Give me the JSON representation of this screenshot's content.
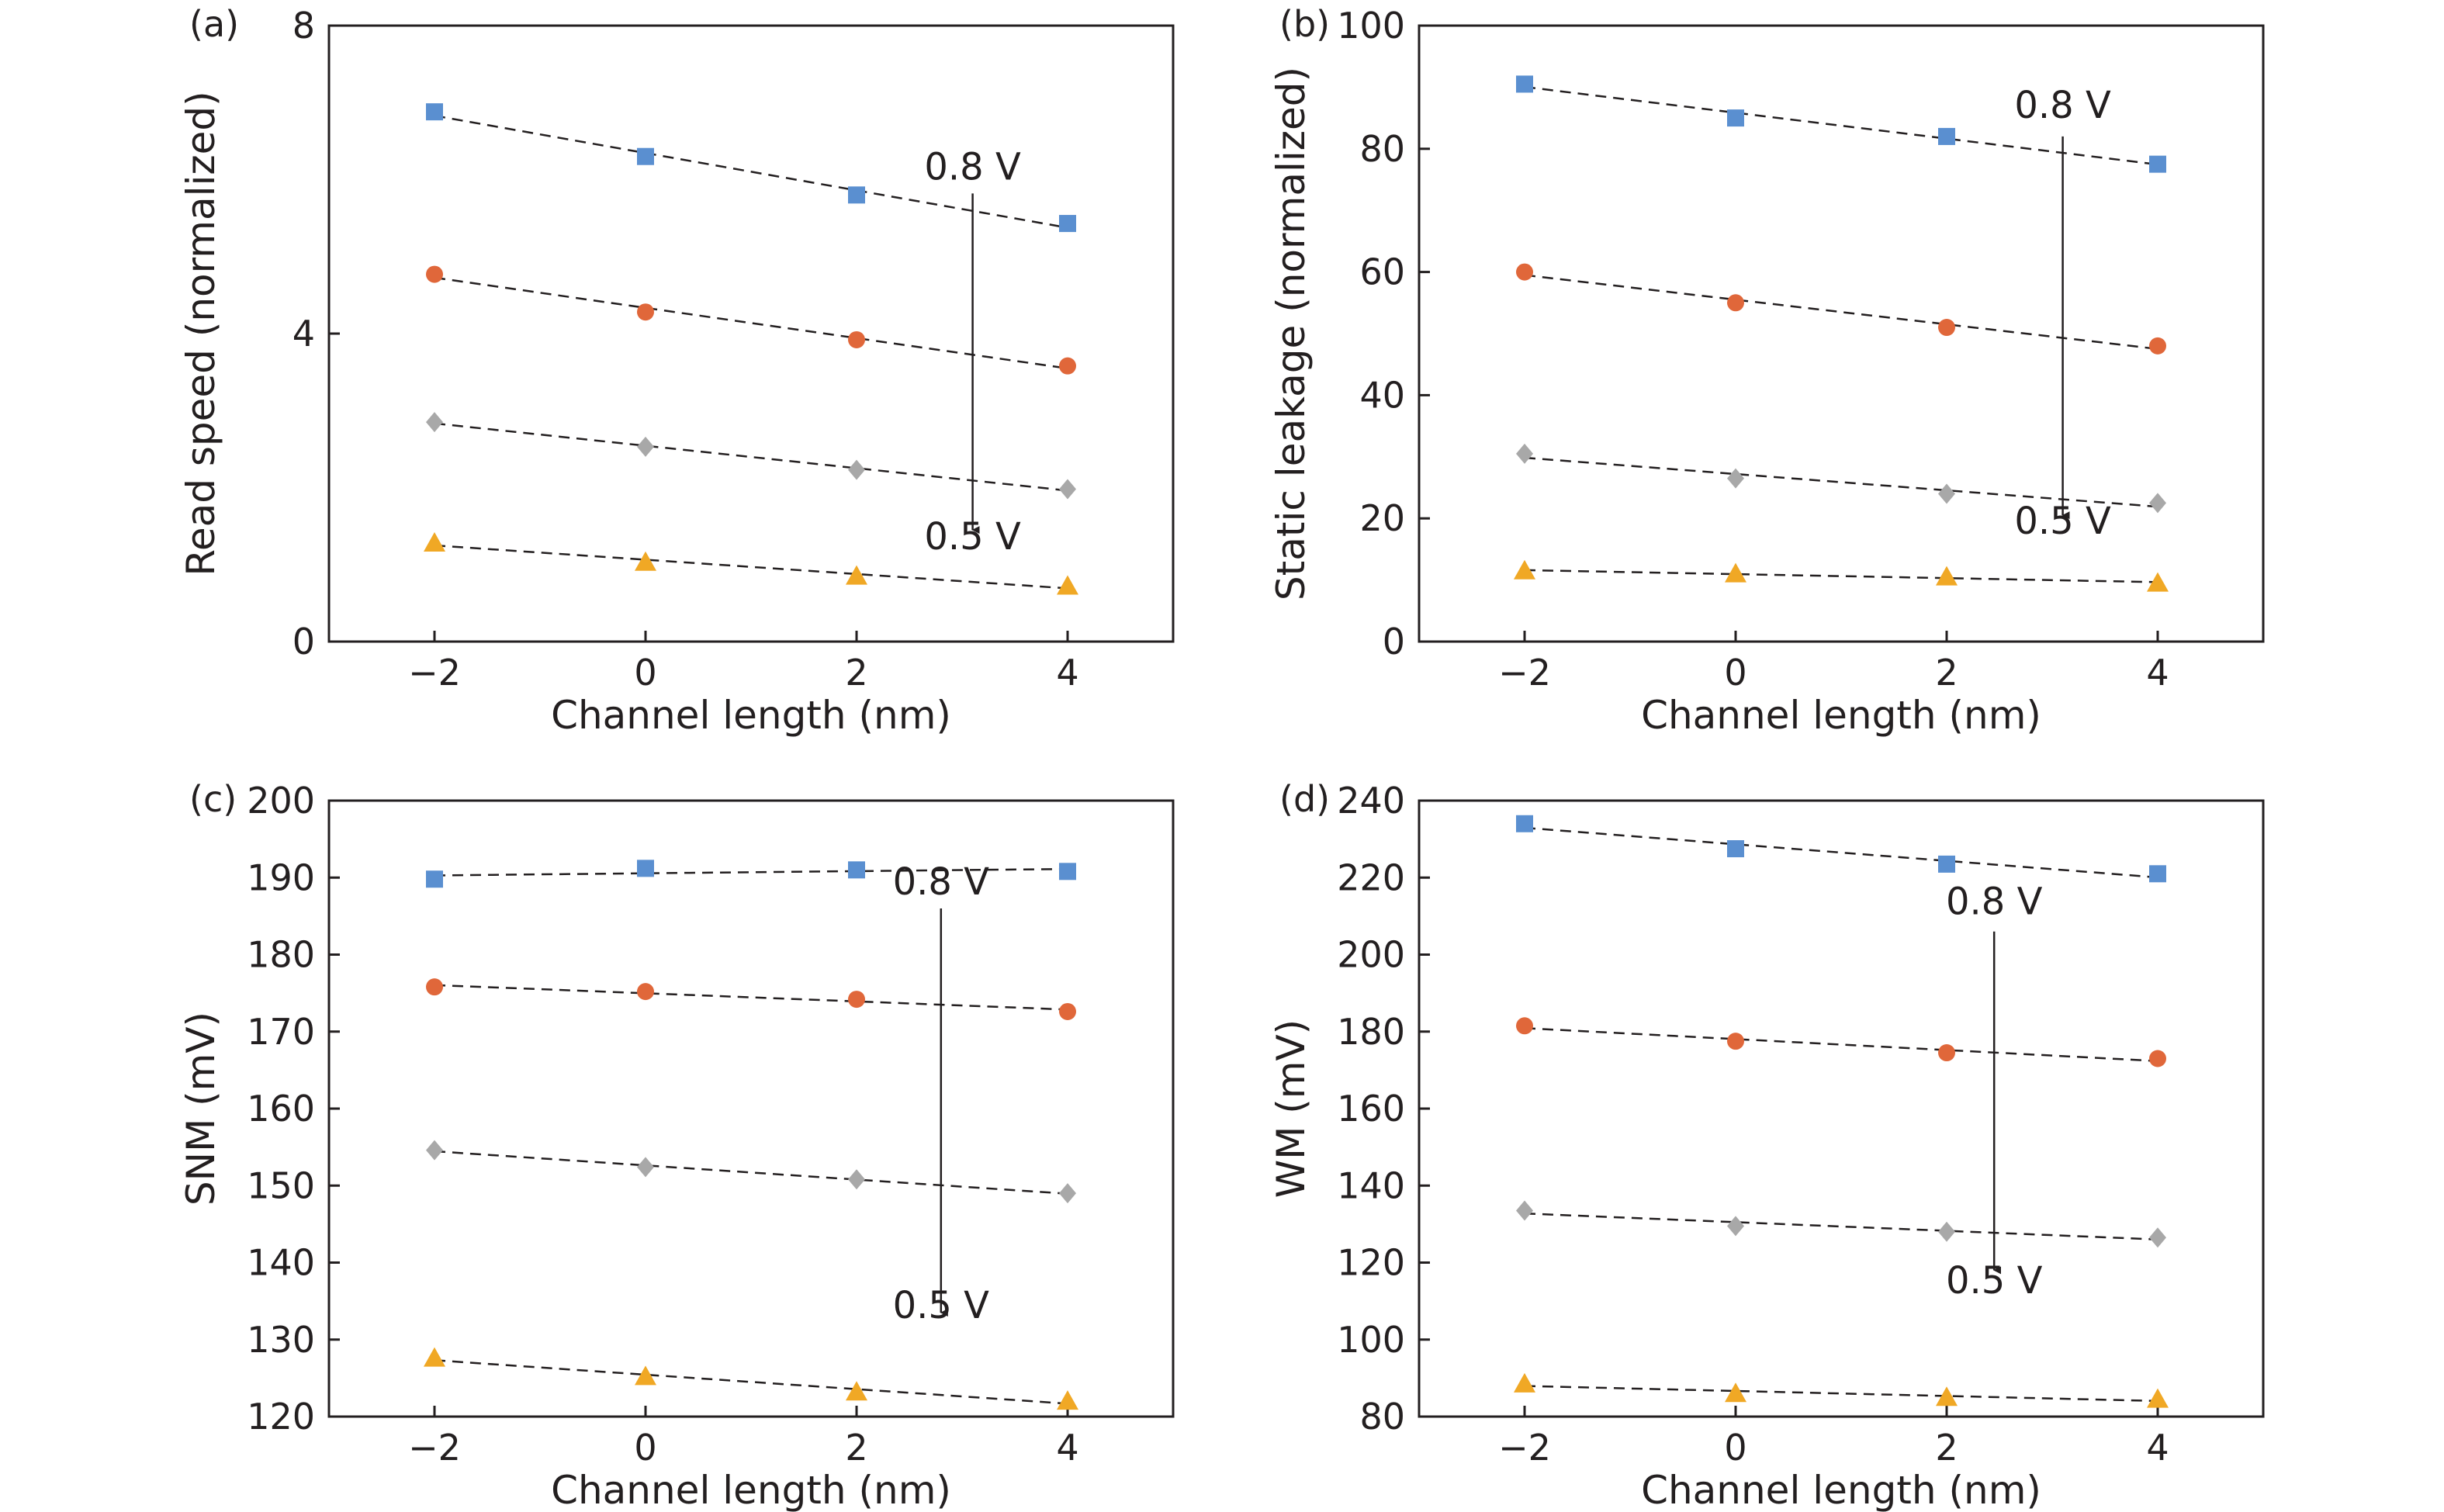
{
  "colors": {
    "square": "#5a8fd0",
    "circle": "#e0673a",
    "diamond": "#a8a8a8",
    "triangle": "#f0a825",
    "fit_line": "#231f20",
    "axes": "#231f20"
  },
  "chart_data": [
    {
      "type": "scatter",
      "panel_label": "(a)",
      "xlabel": "Channel length (nm)",
      "ylabel": "Read speed (normalized)",
      "x": [
        -2,
        0,
        2,
        4
      ],
      "xticks": [
        -2,
        0,
        2,
        4
      ],
      "xtick_labels": [
        "−2",
        "0",
        "2",
        "4"
      ],
      "xlim": [
        -3,
        5
      ],
      "yticks": [
        0,
        4,
        8
      ],
      "ytick_labels": [
        "0",
        "4",
        "8"
      ],
      "ylim": [
        0,
        8
      ],
      "series": [
        {
          "marker": "square",
          "values": [
            6.88,
            6.3,
            5.8,
            5.43
          ]
        },
        {
          "marker": "circle",
          "values": [
            4.77,
            4.28,
            3.92,
            3.58
          ]
        },
        {
          "marker": "diamond",
          "values": [
            2.85,
            2.53,
            2.23,
            1.98
          ]
        },
        {
          "marker": "triangle",
          "values": [
            1.28,
            1.03,
            0.85,
            0.72
          ]
        }
      ],
      "arrow": {
        "x": 3.1,
        "y_start": 5.82,
        "y_end": 1.45,
        "top_label": "0.8 V",
        "bottom_label": "0.5 V",
        "top_label_y": 6.0,
        "bottom_label_y": 1.2
      }
    },
    {
      "type": "scatter",
      "panel_label": "(b)",
      "xlabel": "Channel length (nm)",
      "ylabel": "Static leakage (normalized)",
      "x": [
        -2,
        0,
        2,
        4
      ],
      "xticks": [
        -2,
        0,
        2,
        4
      ],
      "xtick_labels": [
        "−2",
        "0",
        "2",
        "4"
      ],
      "xlim": [
        -3,
        5
      ],
      "yticks": [
        0,
        20,
        40,
        60,
        80,
        100
      ],
      "ytick_labels": [
        "0",
        "20",
        "40",
        "60",
        "80",
        "100"
      ],
      "ylim": [
        0,
        100
      ],
      "series": [
        {
          "marker": "square",
          "values": [
            90.5,
            85.0,
            82.0,
            77.5
          ]
        },
        {
          "marker": "circle",
          "values": [
            60.0,
            55.0,
            51.0,
            48.0
          ]
        },
        {
          "marker": "diamond",
          "values": [
            30.5,
            26.5,
            24.0,
            22.5
          ]
        },
        {
          "marker": "triangle",
          "values": [
            11.5,
            11.0,
            10.5,
            9.5
          ]
        }
      ],
      "arrow": {
        "x": 3.1,
        "y_start": 82.0,
        "y_end": 20.5,
        "top_label": "0.8 V",
        "bottom_label": "0.5 V",
        "top_label_y": 85.0,
        "bottom_label_y": 17.5
      }
    },
    {
      "type": "scatter",
      "panel_label": "(c)",
      "xlabel": "Channel length (nm)",
      "ylabel": "SNM (mV)",
      "x": [
        -2,
        0,
        2,
        4
      ],
      "xticks": [
        -2,
        0,
        2,
        4
      ],
      "xtick_labels": [
        "−2",
        "0",
        "2",
        "4"
      ],
      "xlim": [
        -3,
        5
      ],
      "yticks": [
        120,
        130,
        140,
        150,
        160,
        170,
        180,
        190,
        200
      ],
      "ytick_labels": [
        "120",
        "130",
        "140",
        "150",
        "160",
        "170",
        "180",
        "190",
        "200"
      ],
      "ylim": [
        120,
        200
      ],
      "series": [
        {
          "marker": "square",
          "values": [
            189.8,
            191.2,
            191.0,
            190.8
          ]
        },
        {
          "marker": "circle",
          "values": [
            175.8,
            175.2,
            174.2,
            172.6
          ]
        },
        {
          "marker": "diamond",
          "values": [
            154.6,
            152.4,
            150.8,
            149.0
          ]
        },
        {
          "marker": "triangle",
          "values": [
            127.6,
            125.2,
            123.2,
            122.0
          ]
        }
      ],
      "arrow": {
        "x": 2.8,
        "y_start": 186.0,
        "y_end": 133.5,
        "top_label": "0.8 V",
        "bottom_label": "0.5 V",
        "top_label_y": 187.8,
        "bottom_label_y": 132.8
      }
    },
    {
      "type": "scatter",
      "panel_label": "(d)",
      "xlabel": "Channel length (nm)",
      "ylabel": "WM (mV)",
      "x": [
        -2,
        0,
        2,
        4
      ],
      "xticks": [
        -2,
        0,
        2,
        4
      ],
      "xtick_labels": [
        "−2",
        "0",
        "2",
        "4"
      ],
      "xlim": [
        -3,
        5
      ],
      "yticks": [
        80,
        100,
        120,
        140,
        160,
        180,
        200,
        220,
        240
      ],
      "ytick_labels": [
        "80",
        "100",
        "120",
        "140",
        "160",
        "180",
        "200",
        "220",
        "240"
      ],
      "ylim": [
        80,
        240
      ],
      "series": [
        {
          "marker": "square",
          "values": [
            234.0,
            227.5,
            223.5,
            221.0
          ]
        },
        {
          "marker": "circle",
          "values": [
            181.5,
            177.5,
            174.5,
            173.0
          ]
        },
        {
          "marker": "diamond",
          "values": [
            133.5,
            129.5,
            128.0,
            126.5
          ]
        },
        {
          "marker": "triangle",
          "values": [
            88.5,
            86.0,
            85.0,
            84.5
          ]
        }
      ],
      "arrow": {
        "x": 2.45,
        "y_start": 206.0,
        "y_end": 118.0,
        "top_label": "0.8 V",
        "bottom_label": "0.5 V",
        "top_label_y": 210.5,
        "bottom_label_y": 112.0
      }
    }
  ]
}
